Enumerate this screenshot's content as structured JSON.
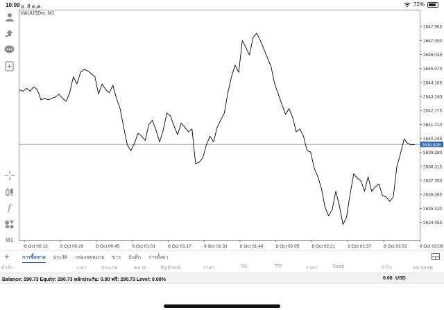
{
  "statusbar": {
    "time": "10:09",
    "date": "อ. 8 ต.ค.",
    "battery": "72%",
    "battery_level": 0.72
  },
  "toolbar": {
    "icons": [
      "account-icon",
      "trade-icon",
      "chat-icon",
      "new-order-icon",
      "crosshair-icon",
      "indicators-icon",
      "function-icon",
      "objects-icon"
    ],
    "timeframe": "M1"
  },
  "chart": {
    "symbol_label": "XAUUSDm, M1",
    "current_price_label": "2639.826",
    "line_color": "#000000",
    "price_line_color": "#8fa8c8",
    "price_tag_color": "#2f6bb3"
  },
  "chart_data": {
    "type": "line",
    "title": "XAUUSDm, M1",
    "xlabel": "",
    "ylabel": "",
    "y_ticks": [
      "2647.965",
      "2647.000",
      "2646.035",
      "2645.070",
      "2644.105",
      "2643.140",
      "2642.175",
      "2641.210",
      "2640.245",
      "2639.280",
      "2638.315",
      "2637.350",
      "2636.385",
      "2635.420",
      "2634.455"
    ],
    "x_ticks": [
      "8 Oct 00:13",
      "8 Oct 00:29",
      "8 Oct 00:45",
      "8 Oct 01:01",
      "8 Oct 01:17",
      "8 Oct 01:33",
      "8 Oct 01:49",
      "8 Oct 02:05",
      "8 Oct 02:21",
      "8 Oct 02:37",
      "8 Oct 02:53",
      "8 Oct 03:09"
    ],
    "ylim": [
      2634.0,
      2648.5
    ],
    "current_price": 2639.826,
    "grid": false,
    "series": [
      {
        "values": [
          2643.6,
          2643.5,
          2643.7,
          2643.5,
          2643.8,
          2643.6,
          2642.9,
          2643.0,
          2642.9,
          2643.0,
          2643.1,
          2643.3,
          2643.0,
          2642.8,
          2643.4,
          2644.5,
          2644.0,
          2644.8,
          2645.0,
          2644.9,
          2644.7,
          2644.5,
          2643.3,
          2644.0,
          2643.6,
          2643.4,
          2643.9,
          2643.0,
          2642.3,
          2641.0,
          2639.8,
          2639.4,
          2639.9,
          2640.6,
          2640.4,
          2640.1,
          2641.2,
          2641.5,
          2640.8,
          2640.0,
          2640.8,
          2642.0,
          2641.8,
          2641.1,
          2640.5,
          2641.3,
          2641.0,
          2640.7,
          2640.9,
          2638.5,
          2638.6,
          2638.9,
          2639.8,
          2640.4,
          2640.0,
          2641.0,
          2641.5,
          2642.0,
          2643.4,
          2644.5,
          2645.3,
          2644.8,
          2647.0,
          2646.5,
          2646.0,
          2647.2,
          2647.5,
          2647.0,
          2646.4,
          2645.8,
          2645.2,
          2644.0,
          2643.3,
          2642.6,
          2641.9,
          2642.3,
          2641.7,
          2640.7,
          2640.9,
          2640.4,
          2639.4,
          2639.3,
          2638.2,
          2637.6,
          2636.8,
          2635.5,
          2634.9,
          2635.3,
          2636.6,
          2635.6,
          2634.3,
          2634.8,
          2636.4,
          2637.8,
          2637.5,
          2637.3,
          2636.6,
          2637.6,
          2636.6,
          2636.9,
          2637.1,
          2636.3,
          2636.2,
          2635.9,
          2636.2,
          2638.3,
          2639.2,
          2640.2,
          2639.9,
          2639.8,
          2639.826
        ]
      }
    ]
  },
  "tabs": {
    "items": [
      "การซื้อขาย",
      "ประวัติ",
      "กล่องจดหมาย",
      "ข่าว",
      "บันทึก",
      "การตั้งค่า"
    ],
    "active_index": 0
  },
  "table": {
    "headers": [
      "คำสั่ง",
      "เวลา",
      "ประเภท",
      "ขนาด",
      "สัญลักษณ์",
      "ราคา",
      "S/L",
      "T/P",
      "ราคา",
      "Swap",
      "กำไร",
      "หมายเหตุ"
    ]
  },
  "account": {
    "summary": "Balance: 290.73 Equity: 290.73 หลักประกัน: 0.00 ฟรี: 290.73 Level: 0.00%",
    "profit": "0.00",
    "currency": "USD"
  }
}
